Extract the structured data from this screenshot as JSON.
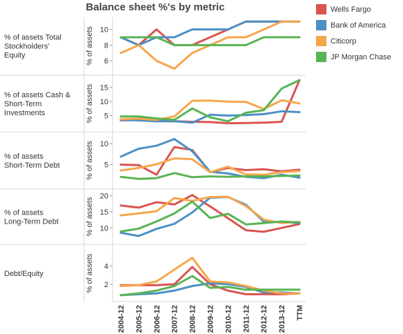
{
  "chart_data": {
    "type": "line",
    "title": "Balance sheet %'s by metric",
    "x": [
      "2004-12",
      "2005-12",
      "2006-12",
      "2007-12",
      "2008-12",
      "2009-12",
      "2010-12",
      "2011-12",
      "2012-12",
      "2013-12",
      "TTM"
    ],
    "series_names": [
      "Wells Fargo",
      "Bank of America",
      "Citicorp",
      "JP Morgan Chase"
    ],
    "colors": {
      "Wells Fargo": "#d9534f",
      "Bank of America": "#4a90c4",
      "Citicorp": "#f7a54b",
      "JP Morgan Chase": "#58b354"
    },
    "grid": false,
    "legend": "top-right",
    "panels": [
      {
        "label": "% of assets Total Stockholders' Equity",
        "ylabel": "% of assets",
        "ylim": [
          4.6,
          11.2
        ],
        "ticks": [
          6,
          8,
          10
        ],
        "series": [
          {
            "name": "Wells Fargo",
            "values": [
              9.0,
              8.0,
              10.0,
              8.0,
              8.0,
              9.0,
              10.0,
              11.0,
              11.0,
              11.0,
              11.0
            ]
          },
          {
            "name": "Bank of America",
            "values": [
              9.0,
              8.0,
              9.0,
              9.0,
              10.0,
              10.0,
              10.0,
              11.0,
              11.0,
              11.0,
              11.0
            ]
          },
          {
            "name": "Citicorp",
            "values": [
              7.0,
              8.0,
              6.0,
              5.0,
              7.0,
              8.0,
              9.0,
              9.0,
              10.0,
              11.0,
              11.0
            ]
          },
          {
            "name": "JP Morgan Chase",
            "values": [
              9.0,
              9.0,
              9.0,
              8.0,
              8.0,
              8.0,
              8.0,
              8.0,
              9.0,
              9.0,
              9.0
            ]
          }
        ]
      },
      {
        "label": "% of assets Cash & Short-Term Investments",
        "ylabel": "% of assets",
        "ylim": [
          0.5,
          18.0
        ],
        "ticks": [
          5,
          10,
          15
        ],
        "series": [
          {
            "name": "Wells Fargo",
            "values": [
              3.3,
              3.5,
              3.2,
              3.0,
              2.8,
              2.7,
              2.3,
              2.4,
              2.5,
              2.8,
              17.5
            ]
          },
          {
            "name": "Bank of America",
            "values": [
              3.5,
              3.3,
              3.0,
              3.0,
              2.5,
              5.3,
              5.0,
              5.2,
              5.5,
              6.5,
              6.2
            ]
          },
          {
            "name": "Citicorp",
            "values": [
              3.7,
              3.9,
              3.5,
              4.7,
              10.2,
              10.3,
              9.9,
              9.8,
              7.3,
              10.4,
              9.3
            ]
          },
          {
            "name": "JP Morgan Chase",
            "values": [
              4.7,
              4.7,
              4.0,
              3.5,
              7.5,
              4.4,
              3.0,
              6.0,
              6.9,
              14.5,
              17.5
            ]
          }
        ]
      },
      {
        "label": "% of assets Short-Term Debt",
        "ylabel": "% of assets",
        "ylim": [
          0.0,
          12.0
        ],
        "ticks": [
          5,
          10
        ],
        "series": [
          {
            "name": "Wells Fargo",
            "values": [
              5.0,
              4.9,
              2.6,
              9.2,
              8.5,
              3.2,
              4.2,
              3.7,
              3.9,
              3.4,
              3.8
            ]
          },
          {
            "name": "Bank of America",
            "values": [
              6.9,
              8.8,
              9.5,
              11.1,
              8.2,
              3.3,
              2.9,
              2.1,
              1.8,
              2.6,
              1.9
            ]
          },
          {
            "name": "Citicorp",
            "values": [
              3.6,
              4.2,
              5.1,
              6.5,
              6.3,
              3.2,
              4.5,
              2.7,
              2.6,
              3.2,
              3.5
            ]
          },
          {
            "name": "JP Morgan Chase",
            "values": [
              2.1,
              1.6,
              1.8,
              3.0,
              2.0,
              2.2,
              2.1,
              2.2,
              2.2,
              2.3,
              2.4
            ]
          }
        ]
      },
      {
        "label": "% of assets Long-Term Debt",
        "ylabel": "% of assets",
        "ylim": [
          6.0,
          21.0
        ],
        "ticks": [
          10,
          15,
          20
        ],
        "series": [
          {
            "name": "Wells Fargo",
            "values": [
              17.0,
              16.3,
              18.0,
              17.3,
              20.2,
              16.7,
              13.0,
              9.3,
              8.8,
              10.0,
              11.2
            ]
          },
          {
            "name": "Bank of America",
            "values": [
              8.5,
              7.5,
              9.7,
              11.3,
              14.8,
              19.4,
              19.6,
              17.2,
              12.0,
              11.8,
              11.5
            ]
          },
          {
            "name": "Citicorp",
            "values": [
              13.9,
              14.5,
              15.2,
              19.3,
              18.4,
              19.6,
              19.7,
              16.8,
              12.6,
              11.5,
              11.9
            ]
          },
          {
            "name": "JP Morgan Chase",
            "values": [
              8.9,
              9.8,
              12.0,
              14.5,
              18.2,
              13.1,
              14.4,
              11.1,
              11.5,
              12.0,
              11.7
            ]
          }
        ]
      },
      {
        "label": "Debt/Equity",
        "ylabel": "% of assets",
        "ylim": [
          0.4,
          6.0
        ],
        "ticks": [
          2,
          4
        ],
        "series": [
          {
            "name": "Wells Fargo",
            "values": [
              1.9,
              1.9,
              1.9,
              2.0,
              3.9,
              2.0,
              1.3,
              0.9,
              0.9,
              0.9,
              1.0
            ]
          },
          {
            "name": "Bank of America",
            "values": [
              0.8,
              0.9,
              1.0,
              1.3,
              1.8,
              2.1,
              2.0,
              1.7,
              1.1,
              1.1,
              1.0
            ]
          },
          {
            "name": "Citicorp",
            "values": [
              1.8,
              1.9,
              2.3,
              3.6,
              4.9,
              2.3,
              2.2,
              1.8,
              1.3,
              1.0,
              1.0
            ]
          },
          {
            "name": "JP Morgan Chase",
            "values": [
              0.8,
              1.0,
              1.3,
              1.8,
              2.9,
              1.6,
              1.7,
              1.4,
              1.4,
              1.4,
              1.4
            ]
          }
        ]
      }
    ]
  }
}
